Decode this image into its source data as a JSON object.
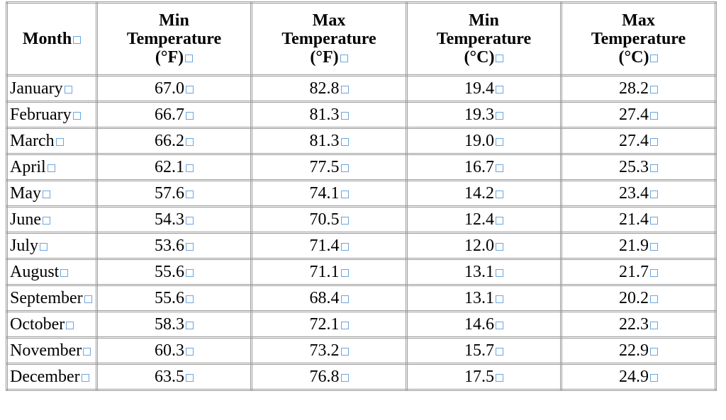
{
  "table": {
    "header": [
      [
        "Month"
      ],
      [
        "Min",
        "Temperature",
        "(°F)"
      ],
      [
        "Max",
        "Temperature",
        "(°F)"
      ],
      [
        "Min",
        "Temperature",
        "(°C)"
      ],
      [
        "Max",
        "Temperature",
        "(°C)"
      ]
    ],
    "rows": [
      [
        "January",
        "67.0",
        "82.8",
        "19.4",
        "28.2"
      ],
      [
        "February",
        "66.7",
        "81.3",
        "19.3",
        "27.4"
      ],
      [
        "March",
        "66.2",
        "81.3",
        "19.0",
        "27.4"
      ],
      [
        "April",
        "62.1",
        "77.5",
        "16.7",
        "25.3"
      ],
      [
        "May",
        "57.6",
        "74.1",
        "14.2",
        "23.4"
      ],
      [
        "June",
        "54.3",
        "70.5",
        "12.4",
        "21.4"
      ],
      [
        "July",
        "53.6",
        "71.4",
        "12.0",
        "21.9"
      ],
      [
        "August",
        "55.6",
        "71.1",
        "13.1",
        "21.7"
      ],
      [
        "September",
        "55.6",
        "68.4",
        "13.1",
        "20.2"
      ],
      [
        "October",
        "58.3",
        "72.1",
        "14.6",
        "22.3"
      ],
      [
        "November",
        "60.3",
        "73.2",
        "15.7",
        "22.9"
      ],
      [
        "December",
        "63.5",
        "76.8",
        "17.5",
        "24.9"
      ]
    ]
  }
}
